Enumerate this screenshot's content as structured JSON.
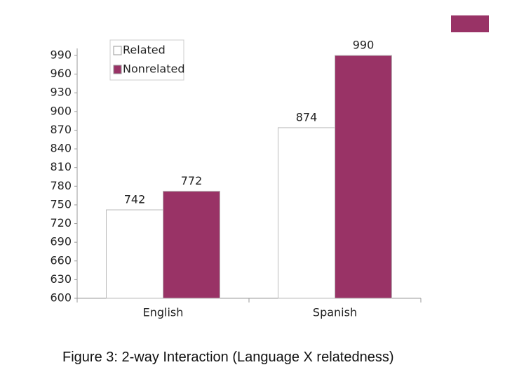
{
  "chart_data": {
    "type": "bar",
    "caption": "Figure 3: 2-way Interaction (Language X relatedness)",
    "categories": [
      "English",
      "Spanish"
    ],
    "series": [
      {
        "name": "Related",
        "color": "#ffffff",
        "values": [
          742,
          874
        ]
      },
      {
        "name": "Nonrelated",
        "color": "#993366",
        "values": [
          772,
          990
        ]
      }
    ],
    "ylim": [
      600,
      990
    ],
    "yticks": [
      600,
      630,
      660,
      690,
      720,
      750,
      780,
      810,
      840,
      870,
      900,
      930,
      960,
      990
    ],
    "grid": false,
    "legend": "top-left"
  }
}
